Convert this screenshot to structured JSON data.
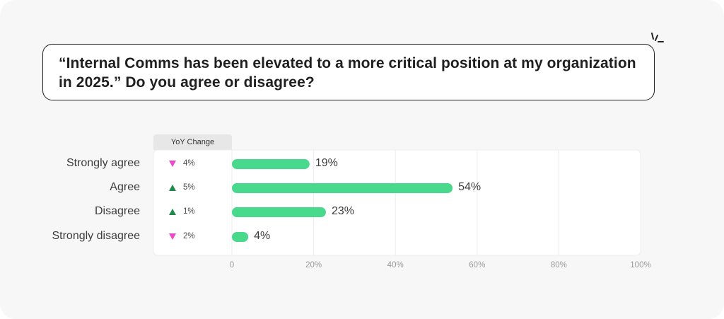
{
  "question": {
    "line1": "“Internal Comms has been elevated to a more critical position at my organization",
    "line2": "in 2025.” Do you agree or disagree?"
  },
  "chart_data": {
    "type": "bar",
    "orientation": "horizontal",
    "categories": [
      "Strongly agree",
      "Agree",
      "Disagree",
      "Strongly disagree"
    ],
    "values": [
      19,
      54,
      23,
      4
    ],
    "value_labels": [
      "19%",
      "54%",
      "23%",
      "4%"
    ],
    "yoy_header": "YoY Change",
    "yoy_change": [
      {
        "direction": "down",
        "label": "4%"
      },
      {
        "direction": "up",
        "label": "5%"
      },
      {
        "direction": "up",
        "label": "1%"
      },
      {
        "direction": "down",
        "label": "2%"
      }
    ],
    "xlim": [
      0,
      100
    ],
    "xticks": [
      "0",
      "20%",
      "40%",
      "60%",
      "80%",
      "100%"
    ],
    "grid": true,
    "colors": {
      "bar": "#48d98d",
      "up": "#1f8a4c",
      "down": "#ee46c8"
    }
  }
}
